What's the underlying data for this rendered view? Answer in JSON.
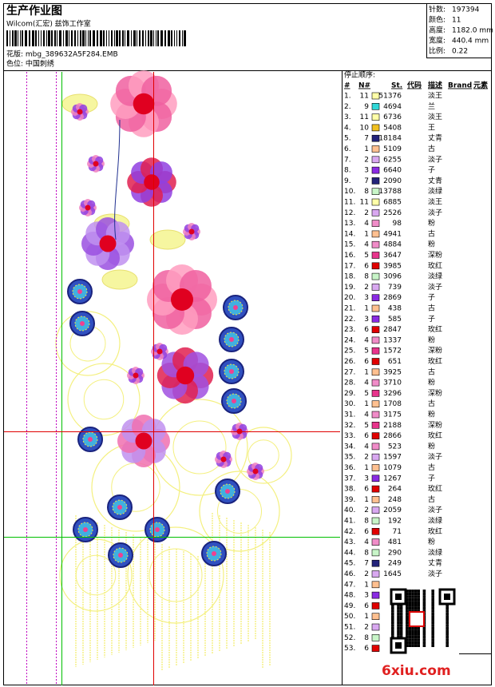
{
  "header": {
    "title": "生产作业图",
    "studio": "Wilcom(汇宏) 兹饰工作室",
    "pattern": "花版: mbg_389632A5F284.EMB",
    "colorway": "色位: 中国刺绣"
  },
  "info": {
    "rows": [
      [
        "针数:",
        "197394"
      ],
      [
        "颜色:",
        "11"
      ],
      [
        "高度:",
        "1182.0 mm"
      ],
      [
        "宽度:",
        "440.4 mm"
      ],
      [
        "比例:",
        "0.22"
      ]
    ]
  },
  "table": {
    "title": "停止顺序:",
    "columns": [
      "#",
      "N#",
      "St.",
      "代码",
      "描述",
      "Brand",
      "元素"
    ],
    "needle_colors": {
      "1": "#ffc090",
      "2": "#d8a8f0",
      "3": "#8a2be2",
      "4": "#f08cc8",
      "5": "#e8348c",
      "6": "#e00000",
      "7": "#23237a",
      "8": "#c8f5c8",
      "9": "#30d8d8",
      "10": "#f0c020",
      "11": "#ffffa8"
    },
    "rows": [
      [
        "1.",
        11,
        51376,
        "淡王"
      ],
      [
        "2.",
        9,
        4694,
        "兰"
      ],
      [
        "3.",
        11,
        6736,
        "淡王"
      ],
      [
        "4.",
        10,
        5408,
        "王"
      ],
      [
        "5.",
        7,
        18184,
        "丈青"
      ],
      [
        "6.",
        1,
        5109,
        "古"
      ],
      [
        "7.",
        2,
        6255,
        "淡子"
      ],
      [
        "8.",
        3,
        6640,
        "子"
      ],
      [
        "9.",
        7,
        2090,
        "丈青"
      ],
      [
        "10.",
        8,
        13788,
        "淡绿"
      ],
      [
        "11.",
        11,
        6885,
        "淡王"
      ],
      [
        "12.",
        2,
        2526,
        "淡子"
      ],
      [
        "13.",
        4,
        98,
        "粉"
      ],
      [
        "14.",
        1,
        4941,
        "古"
      ],
      [
        "15.",
        4,
        4884,
        "粉"
      ],
      [
        "16.",
        5,
        3647,
        "深粉"
      ],
      [
        "17.",
        6,
        3985,
        "玫红"
      ],
      [
        "18.",
        8,
        3096,
        "淡绿"
      ],
      [
        "19.",
        2,
        739,
        "淡子"
      ],
      [
        "20.",
        3,
        2869,
        "子"
      ],
      [
        "21.",
        1,
        438,
        "古"
      ],
      [
        "22.",
        3,
        585,
        "子"
      ],
      [
        "23.",
        6,
        2847,
        "玫红"
      ],
      [
        "24.",
        4,
        1337,
        "粉"
      ],
      [
        "25.",
        5,
        1572,
        "深粉"
      ],
      [
        "26.",
        6,
        651,
        "玫红"
      ],
      [
        "27.",
        1,
        3925,
        "古"
      ],
      [
        "28.",
        4,
        3710,
        "粉"
      ],
      [
        "29.",
        5,
        3296,
        "深粉"
      ],
      [
        "30.",
        1,
        1708,
        "古"
      ],
      [
        "31.",
        4,
        3175,
        "粉"
      ],
      [
        "32.",
        5,
        2188,
        "深粉"
      ],
      [
        "33.",
        6,
        2866,
        "玫红"
      ],
      [
        "34.",
        4,
        523,
        "粉"
      ],
      [
        "35.",
        2,
        1597,
        "淡子"
      ],
      [
        "36.",
        1,
        1079,
        "古"
      ],
      [
        "37.",
        3,
        1267,
        "子"
      ],
      [
        "38.",
        6,
        264,
        "玫红"
      ],
      [
        "39.",
        1,
        248,
        "古"
      ],
      [
        "40.",
        2,
        2059,
        "淡子"
      ],
      [
        "41.",
        8,
        192,
        "淡绿"
      ],
      [
        "42.",
        6,
        71,
        "玫红"
      ],
      [
        "43.",
        4,
        481,
        "粉"
      ],
      [
        "44.",
        8,
        290,
        "淡绿"
      ],
      [
        "45.",
        7,
        249,
        "丈青"
      ],
      [
        "46.",
        2,
        1645,
        "淡子"
      ],
      [
        "47.",
        1
      ],
      [
        "48.",
        3
      ],
      [
        "49.",
        6
      ],
      [
        "50.",
        1
      ],
      [
        "51.",
        2
      ],
      [
        "52.",
        8
      ],
      [
        "53.",
        6
      ]
    ]
  },
  "watermark": "6xiu.com"
}
